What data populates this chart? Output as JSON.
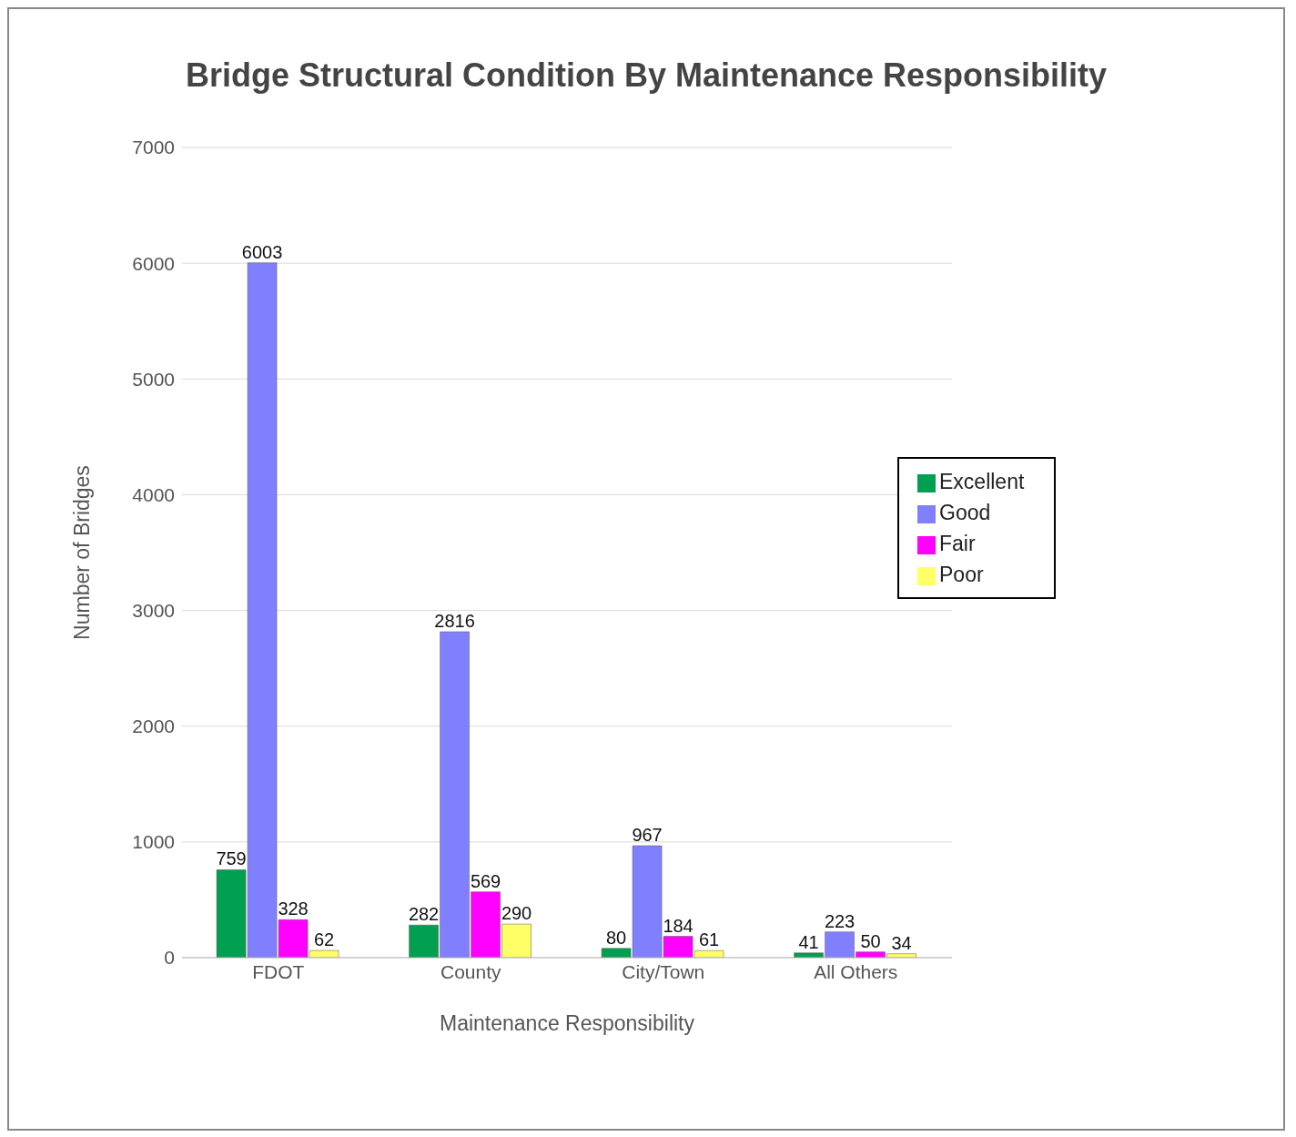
{
  "chart_data": {
    "type": "bar",
    "title": "Bridge Structural Condition By Maintenance Responsibility",
    "xlabel": "Maintenance Responsibility",
    "ylabel": "Number of Bridges",
    "categories": [
      "FDOT",
      "County",
      "City/Town",
      "All Others"
    ],
    "series": [
      {
        "name": "Excellent",
        "color": "#00a050",
        "values": [
          759,
          282,
          80,
          41
        ]
      },
      {
        "name": "Good",
        "color": "#8080ff",
        "values": [
          6003,
          2816,
          967,
          223
        ]
      },
      {
        "name": "Fair",
        "color": "#ff00ff",
        "values": [
          328,
          569,
          184,
          50
        ]
      },
      {
        "name": "Poor",
        "color": "#ffff66",
        "values": [
          62,
          290,
          61,
          34
        ]
      }
    ],
    "ylim": [
      0,
      7000
    ],
    "yticks": [
      0,
      1000,
      2000,
      3000,
      4000,
      5000,
      6000,
      7000
    ],
    "grid": "y",
    "legend": "right",
    "data_labels": true
  }
}
